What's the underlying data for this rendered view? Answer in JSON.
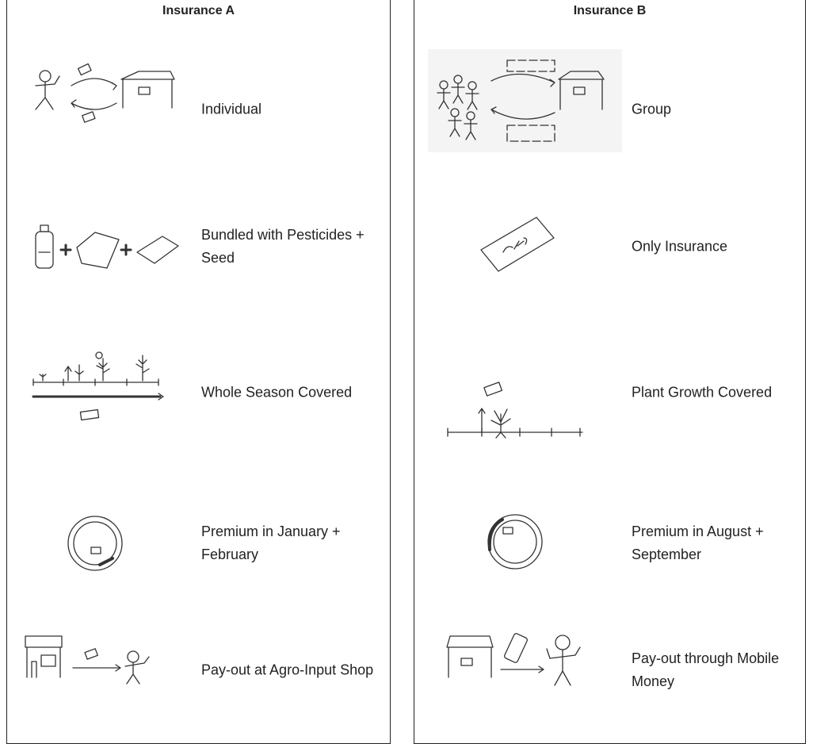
{
  "panels": [
    {
      "title": "Insurance A",
      "rows": [
        "Individual",
        "Bundled with Pesticides + Seed",
        "Whole Season Covered",
        "Premium in January + February",
        "Pay-out at Agro-Input Shop"
      ]
    },
    {
      "title": "Insurance B",
      "rows": [
        "Group",
        "Only Insurance",
        "Plant Growth Covered",
        "Premium in August + September",
        "Pay-out through Mobile Money"
      ]
    }
  ]
}
